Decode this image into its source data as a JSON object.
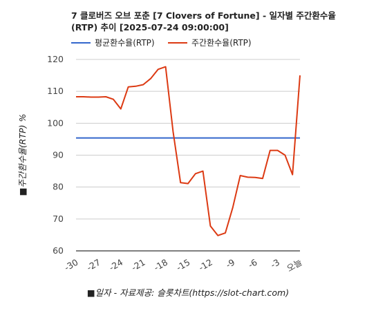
{
  "title": "7 클로버즈 오브 포춘 [7 Clovers of Fortune] - 일자별 주간환수율 (RTP) 추이 [2025-07-24 09:00:00]",
  "source_text": "■일자 - 자료제공: 슬롯차트(https://slot-chart.com)",
  "chart_data": {
    "type": "line",
    "title": "7 클로버즈 오브 포춘 [7 Clovers of Fortune] - 일자별 주간환수율 (RTP) 추이 [2025-07-24 09:00:00]",
    "xlabel": "■일자 - 자료제공: 슬롯차트(https://slot-chart.com)",
    "ylabel": "■주간환수율(RTP) %",
    "ylim": [
      60,
      120
    ],
    "yticks": [
      60,
      70,
      80,
      90,
      100,
      110,
      120
    ],
    "x": [
      -30,
      -29,
      -28,
      -27,
      -26,
      -25,
      -24,
      -23,
      -22,
      -21,
      -20,
      -19,
      -18,
      -17,
      -16,
      -15,
      -14,
      -13,
      -12,
      -11,
      -10,
      -9,
      -8,
      -7,
      -6,
      -5,
      -4,
      -3,
      -2,
      -1,
      0
    ],
    "xticks": [
      -30,
      -27,
      -24,
      -21,
      -18,
      -15,
      -12,
      -9,
      -6,
      -3,
      0
    ],
    "xtick_labels": [
      "-30",
      "-27",
      "-24",
      "-21",
      "-18",
      "-15",
      "-12",
      "-9",
      "-6",
      "-3",
      "오늘"
    ],
    "grid": true,
    "legend_position": "top-left",
    "series": [
      {
        "name": "평균환수율(RTP)",
        "color": "#3366cc",
        "values": [
          95.4,
          95.4,
          95.4,
          95.4,
          95.4,
          95.4,
          95.4,
          95.4,
          95.4,
          95.4,
          95.4,
          95.4,
          95.4,
          95.4,
          95.4,
          95.4,
          95.4,
          95.4,
          95.4,
          95.4,
          95.4,
          95.4,
          95.4,
          95.4,
          95.4,
          95.4,
          95.4,
          95.4,
          95.4,
          95.4,
          95.4
        ]
      },
      {
        "name": "주간환수율(RTP)",
        "color": "#dc3912",
        "values": [
          108.3,
          108.3,
          108.2,
          108.2,
          108.3,
          107.5,
          104.5,
          111.4,
          111.6,
          112.1,
          114.0,
          116.9,
          117.7,
          97.4,
          81.4,
          81.1,
          84.2,
          85.0,
          67.8,
          64.8,
          65.6,
          73.6,
          83.6,
          83.1,
          83.0,
          82.7,
          91.5,
          91.5,
          90.0,
          83.9,
          115.0
        ]
      }
    ]
  }
}
